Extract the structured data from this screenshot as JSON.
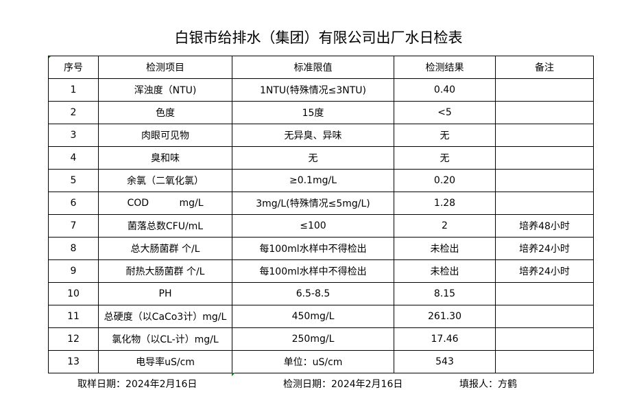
{
  "title": "白银市给排水（集团）有限公司出厂水日检表",
  "table": {
    "headers": [
      "序号",
      "检测项目",
      "标准限值",
      "检测结果",
      "备注"
    ],
    "rows": [
      [
        "1",
        "浑浊度（NTU)",
        "1NTU(特殊情况≤3NTU)",
        "0.40",
        ""
      ],
      [
        "2",
        "色度",
        "15度",
        "<5",
        ""
      ],
      [
        "3",
        "肉眼可见物",
        "无异臭、异味",
        "无",
        ""
      ],
      [
        "4",
        "臭和味",
        "无",
        "无",
        ""
      ],
      [
        "5",
        "余氯（二氧化氯）",
        "≥0.1mg/L",
        "0.20",
        ""
      ],
      [
        "6",
        "COD          mg/L",
        "3mg/L(特殊情况≤5mg/L)",
        "1.28",
        ""
      ],
      [
        "7",
        "菌落总数CFU/mL",
        "≤100",
        "2",
        "培养48小时"
      ],
      [
        "8",
        "总大肠菌群 个/L",
        "每100ml水样中不得检出",
        "未检出",
        "培养24小时"
      ],
      [
        "9",
        "耐热大肠菌群 个/L",
        "每100ml水样中不得检出",
        "未检出",
        "培养24小时"
      ],
      [
        "10",
        "PH",
        "6.5-8.5",
        "8.15",
        ""
      ],
      [
        "11",
        "总硬度（以CaCo3计）mg/L",
        "450mg/L",
        "261.30",
        ""
      ],
      [
        "12",
        "氯化物（以CL-计）mg/L",
        "250mg/L",
        "17.46",
        ""
      ],
      [
        "13",
        "电导率uS/cm",
        "单位：uS/cm",
        "543",
        ""
      ]
    ]
  },
  "footer": {
    "sample_date": "取样日期：2024年2月16日",
    "test_date": "检测日期：2024年2月16日",
    "reporter": "填报人：方鹤"
  }
}
